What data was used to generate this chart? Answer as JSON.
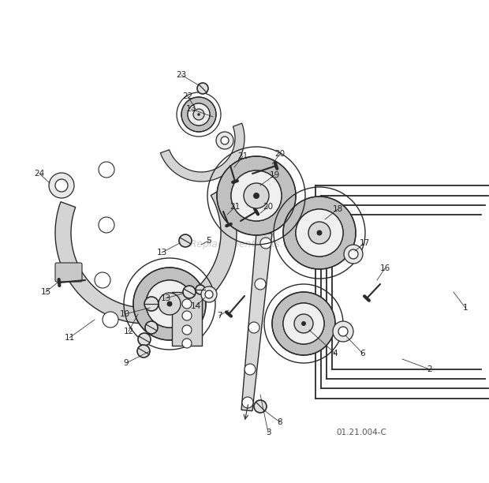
{
  "bg_color": "#ffffff",
  "line_color": "#2a2a2a",
  "watermark": "eReplacementParts.com",
  "part_code": "01.21.004-C",
  "figsize": [
    6.2,
    6.12
  ],
  "dpi": 100
}
